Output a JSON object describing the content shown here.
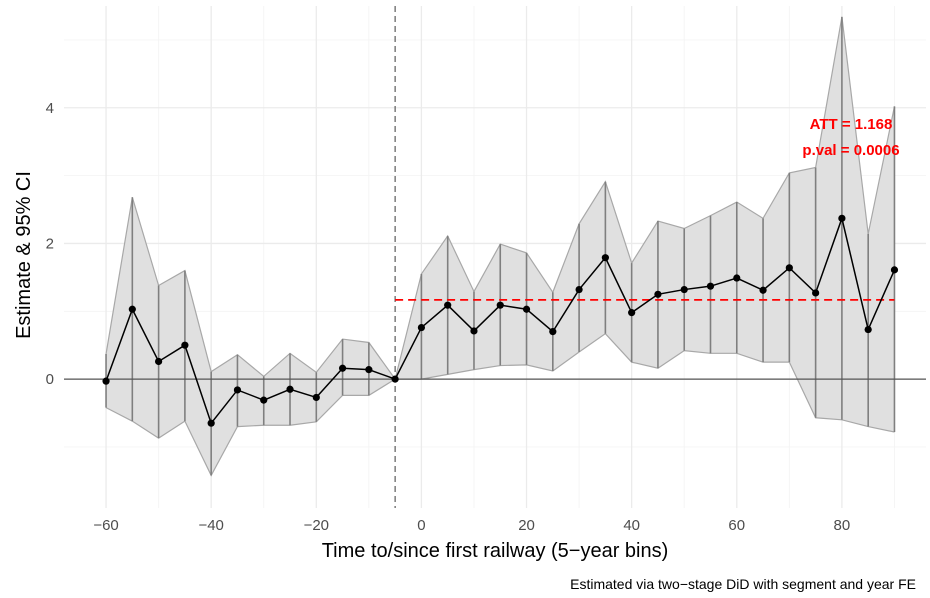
{
  "chart_data": {
    "type": "line",
    "xlabel": "Time to/since first railway (5−year bins)",
    "ylabel": "Estimate & 95% CI",
    "caption": "Estimated via two−stage DiD with segment and year FE",
    "xlim": [
      -68,
      96
    ],
    "ylim": [
      -1.9,
      5.5
    ],
    "x_ticks": [
      -60,
      -40,
      -20,
      0,
      20,
      40,
      60,
      80
    ],
    "x_tick_labels": [
      "−60",
      "−40",
      "−20",
      "0",
      "20",
      "40",
      "60",
      "80"
    ],
    "y_ticks": [
      0,
      2,
      4
    ],
    "y_tick_labels": [
      "0",
      "2",
      "4"
    ],
    "grid": true,
    "treatment_line_x": -5,
    "att": {
      "value": 1.168,
      "start_x": -5,
      "label_att": "ATT = 1.168",
      "label_pval": "p.val = 0.0006",
      "color": "#ff0000"
    },
    "series": [
      {
        "x": [
          -60,
          -55,
          -50,
          -45,
          -40,
          -35,
          -30,
          -25,
          -20,
          -15,
          -10,
          -5,
          0,
          5,
          10,
          15,
          20,
          25,
          30,
          35,
          40,
          45,
          50,
          55,
          60,
          65,
          70,
          75,
          80,
          85,
          90
        ],
        "estimate": [
          -0.03,
          1.03,
          0.26,
          0.5,
          -0.65,
          -0.16,
          -0.31,
          -0.15,
          -0.27,
          0.16,
          0.14,
          0.0,
          0.76,
          1.09,
          0.71,
          1.09,
          1.03,
          0.7,
          1.32,
          1.79,
          0.98,
          1.25,
          1.32,
          1.37,
          1.49,
          1.31,
          1.64,
          1.27,
          2.37,
          0.73,
          1.61
        ],
        "ci_low": [
          -0.42,
          -0.62,
          -0.87,
          -0.62,
          -1.42,
          -0.7,
          -0.68,
          -0.68,
          -0.63,
          -0.24,
          -0.24,
          0.0,
          0.0,
          0.07,
          0.14,
          0.2,
          0.21,
          0.12,
          0.4,
          0.67,
          0.25,
          0.16,
          0.42,
          0.38,
          0.38,
          0.25,
          0.25,
          -0.57,
          -0.6,
          -0.7,
          -0.78
        ],
        "ci_high": [
          0.37,
          2.68,
          1.38,
          1.6,
          0.11,
          0.36,
          0.04,
          0.38,
          0.1,
          0.59,
          0.54,
          0.0,
          1.55,
          2.11,
          1.29,
          1.99,
          1.86,
          1.28,
          2.29,
          2.91,
          1.71,
          2.33,
          2.22,
          2.41,
          2.61,
          2.37,
          3.04,
          3.12,
          5.34,
          2.14,
          4.02
        ]
      }
    ],
    "colors": {
      "ribbon_fill": "#e0e0e0",
      "ribbon_edge": "#a8a8a8",
      "ci_segment": "#7f7f7f",
      "point_line": "#000000",
      "grid_major": "#ebebeb",
      "grid_minor": "#f4f4f4",
      "zero_line": "#555555",
      "treatment_line": "#666666"
    }
  }
}
